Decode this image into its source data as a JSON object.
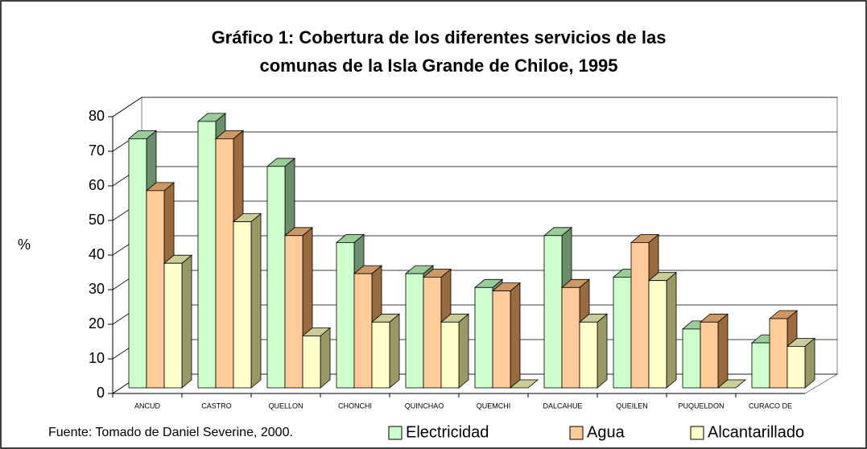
{
  "chart_data": {
    "type": "bar3d",
    "title": "Gráfico 1: Cobertura de los diferentes servicios de las comunas de la Isla Grande de Chiloe, 1995",
    "title_lines": [
      "Gráfico 1: Cobertura de los diferentes servicios de las",
      "comunas de la Isla Grande de Chiloe, 1995"
    ],
    "y_label": "%",
    "source": "Fuente: Tomado de Daniel Severine,  2000.",
    "categories": [
      "ANCUD",
      "CASTRO",
      "QUELLON",
      "CHONCHI",
      "QUINCHAO",
      "QUEMCHI",
      "DALCAHUE",
      "QUEILEN",
      "PUQUELDON",
      "CURACO DE"
    ],
    "series": [
      {
        "name": "Electricidad",
        "color": "#ccffcc",
        "values": [
          72,
          77,
          64,
          42,
          33,
          29,
          44,
          32,
          17,
          13
        ]
      },
      {
        "name": "Agua",
        "color": "#ffcc99",
        "values": [
          57,
          72,
          44,
          33,
          32,
          28,
          29,
          42,
          19,
          20
        ]
      },
      {
        "name": "Alcantarillado",
        "color": "#ffffcc",
        "values": [
          36,
          48,
          15,
          19,
          19,
          0,
          19,
          31,
          0,
          12
        ]
      }
    ],
    "ylim": [
      0,
      80
    ],
    "yticks": [
      0,
      10,
      20,
      30,
      40,
      50,
      60,
      70,
      80
    ],
    "grid": true
  }
}
